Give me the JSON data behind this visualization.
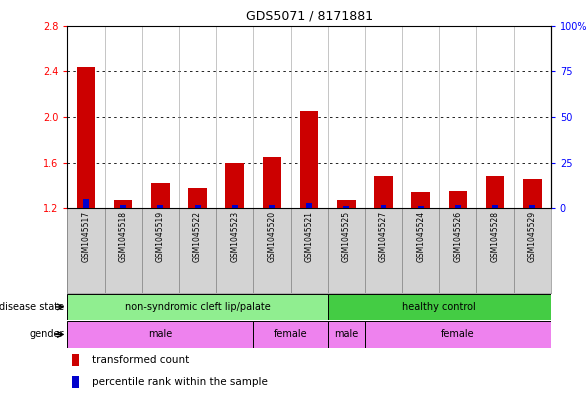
{
  "title": "GDS5071 / 8171881",
  "samples": [
    "GSM1045517",
    "GSM1045518",
    "GSM1045519",
    "GSM1045522",
    "GSM1045523",
    "GSM1045520",
    "GSM1045521",
    "GSM1045525",
    "GSM1045527",
    "GSM1045524",
    "GSM1045526",
    "GSM1045528",
    "GSM1045529"
  ],
  "transformed_count": [
    2.44,
    1.27,
    1.42,
    1.38,
    1.6,
    1.65,
    2.05,
    1.27,
    1.48,
    1.34,
    1.35,
    1.48,
    1.46
  ],
  "percentile_rank": [
    5,
    2,
    2,
    2,
    2,
    2,
    3,
    1,
    2,
    1,
    2,
    2,
    2
  ],
  "ylim_left": [
    1.2,
    2.8
  ],
  "ylim_right": [
    0,
    100
  ],
  "yticks_left": [
    1.2,
    1.6,
    2.0,
    2.4,
    2.8
  ],
  "yticks_right": [
    0,
    25,
    50,
    75,
    100
  ],
  "bar_color_red": "#cc0000",
  "bar_color_blue": "#0000cc",
  "sample_bg": "#d3d3d3",
  "ds_color_light": "#90ee90",
  "ds_color_bright": "#44cc44",
  "gender_color": "#ee82ee",
  "ds_groups": [
    {
      "label": "non-syndromic cleft lip/palate",
      "start": 0,
      "end": 7,
      "color": "#90ee90"
    },
    {
      "label": "healthy control",
      "start": 7,
      "end": 13,
      "color": "#44cc44"
    }
  ],
  "gender_groups": [
    {
      "label": "male",
      "start": 0,
      "end": 5
    },
    {
      "label": "female",
      "start": 5,
      "end": 7
    },
    {
      "label": "male",
      "start": 7,
      "end": 8
    },
    {
      "label": "female",
      "start": 8,
      "end": 13
    }
  ]
}
